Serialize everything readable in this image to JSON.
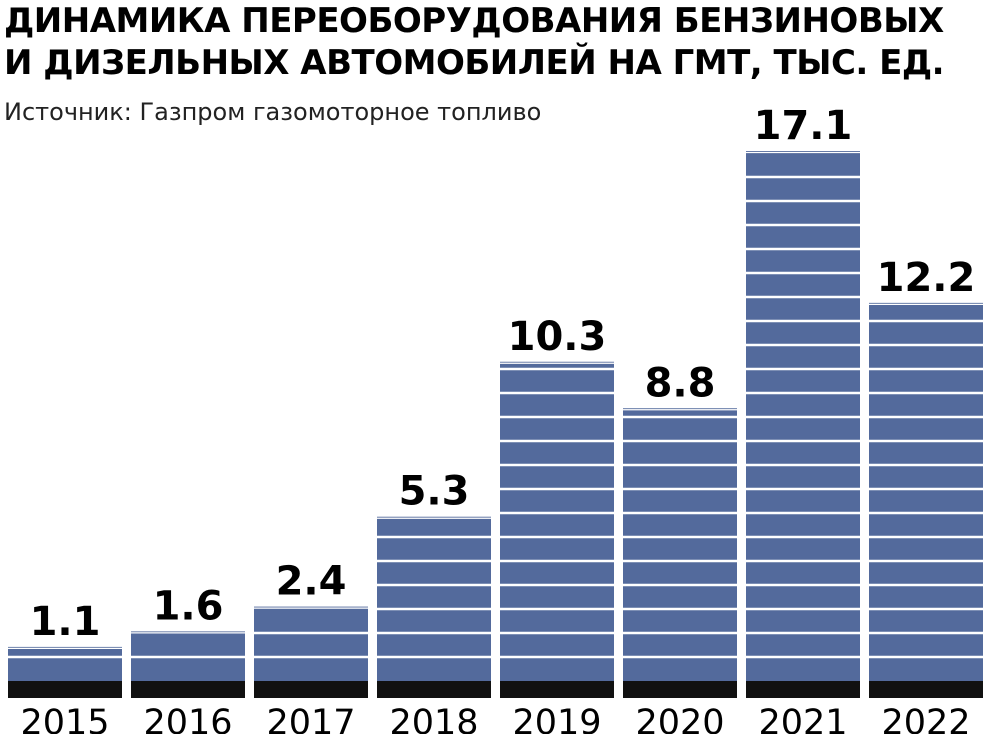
{
  "title": {
    "line1": "ДИНАМИКА ПЕРЕОБОРУДОВАНИЯ БЕНЗИНОВЫХ",
    "line2": "И ДИЗЕЛЬНЫХ АВТОМОБИЛЕЙ НА ГМТ, ТЫС. ЕД."
  },
  "source": "Источник: Газпром газомоторное топливо",
  "colors": {
    "bar": "#536a9c",
    "stripe": "#ffffff",
    "base": "#111111",
    "text": "#000000"
  },
  "chart_data": {
    "type": "bar",
    "title": "ДИНАМИКА ПЕРЕОБОРУДОВАНИЯ БЕНЗИНОВЫХ И ДИЗЕЛЬНЫХ АВТОМОБИЛЕЙ НА ГМТ, ТЫС. ЕД.",
    "categories": [
      "2015",
      "2016",
      "2017",
      "2018",
      "2019",
      "2020",
      "2021",
      "2022"
    ],
    "values": [
      1.1,
      1.6,
      2.4,
      5.3,
      10.3,
      8.8,
      17.1,
      12.2
    ],
    "value_labels": [
      "1.1",
      "1.6",
      "2.4",
      "5.3",
      "10.3",
      "8.8",
      "17.1",
      "12.2"
    ],
    "xlabel": "",
    "ylabel": "",
    "ylim": [
      0,
      17.1
    ],
    "grid": false,
    "legend": "none"
  }
}
